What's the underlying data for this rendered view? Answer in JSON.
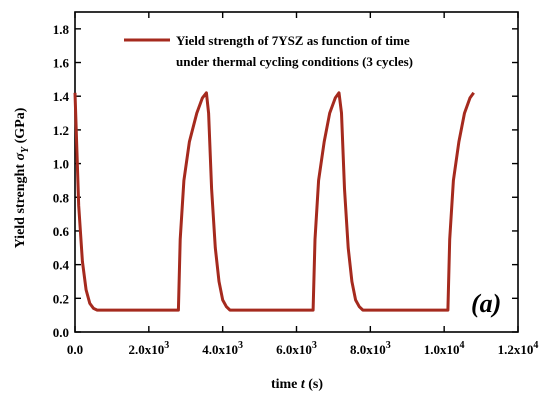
{
  "chart_data": {
    "type": "line",
    "xlabel_prefix": "time ",
    "xlabel_var": "t",
    "xlabel_unit": " (s)",
    "ylabel_prefix": "Yield strenght ",
    "ylabel_var": "σ",
    "ylabel_sub": "Y",
    "ylabel_unit": " (GPa)",
    "xlim": [
      0,
      12000
    ],
    "ylim": [
      0.0,
      1.9
    ],
    "panel_label": "(a)",
    "x_ticks": [
      {
        "value": 0,
        "mantissa": "0.0",
        "exp": ""
      },
      {
        "value": 2000,
        "mantissa": "2.0x10",
        "exp": "3"
      },
      {
        "value": 4000,
        "mantissa": "4.0x10",
        "exp": "3"
      },
      {
        "value": 6000,
        "mantissa": "6.0x10",
        "exp": "3"
      },
      {
        "value": 8000,
        "mantissa": "8.0x10",
        "exp": "3"
      },
      {
        "value": 10000,
        "mantissa": "1.0x10",
        "exp": "4"
      },
      {
        "value": 12000,
        "mantissa": "1.2x10",
        "exp": "4"
      }
    ],
    "y_ticks": [
      {
        "value": 0.0,
        "label": "0.0"
      },
      {
        "value": 0.2,
        "label": "0.2"
      },
      {
        "value": 0.4,
        "label": "0.4"
      },
      {
        "value": 0.6,
        "label": "0.6"
      },
      {
        "value": 0.8,
        "label": "0.8"
      },
      {
        "value": 1.0,
        "label": "1.0"
      },
      {
        "value": 1.2,
        "label": "1.2"
      },
      {
        "value": 1.4,
        "label": "1.4"
      },
      {
        "value": 1.6,
        "label": "1.6"
      },
      {
        "value": 1.8,
        "label": "1.8"
      }
    ],
    "legend": {
      "placement": "top-right",
      "line1": "Yield strength of 7YSZ as function of time",
      "line2": "under thermal cycling conditions (3 cycles)"
    },
    "series": [
      {
        "color": "#a52a1e",
        "points": [
          [
            0,
            1.42
          ],
          [
            100,
            0.75
          ],
          [
            200,
            0.42
          ],
          [
            300,
            0.25
          ],
          [
            400,
            0.17
          ],
          [
            500,
            0.14
          ],
          [
            600,
            0.13
          ],
          [
            2800,
            0.13
          ],
          [
            2850,
            0.55
          ],
          [
            2950,
            0.9
          ],
          [
            3100,
            1.13
          ],
          [
            3300,
            1.3
          ],
          [
            3450,
            1.39
          ],
          [
            3560,
            1.42
          ],
          [
            3620,
            1.3
          ],
          [
            3700,
            0.85
          ],
          [
            3800,
            0.5
          ],
          [
            3900,
            0.3
          ],
          [
            4000,
            0.19
          ],
          [
            4100,
            0.15
          ],
          [
            4200,
            0.13
          ],
          [
            6450,
            0.13
          ],
          [
            6500,
            0.55
          ],
          [
            6600,
            0.9
          ],
          [
            6750,
            1.13
          ],
          [
            6900,
            1.3
          ],
          [
            7050,
            1.39
          ],
          [
            7150,
            1.42
          ],
          [
            7220,
            1.3
          ],
          [
            7300,
            0.85
          ],
          [
            7400,
            0.5
          ],
          [
            7500,
            0.3
          ],
          [
            7600,
            0.19
          ],
          [
            7700,
            0.15
          ],
          [
            7800,
            0.13
          ],
          [
            10100,
            0.13
          ],
          [
            10150,
            0.55
          ],
          [
            10250,
            0.9
          ],
          [
            10400,
            1.13
          ],
          [
            10550,
            1.3
          ],
          [
            10700,
            1.39
          ],
          [
            10800,
            1.42
          ]
        ]
      }
    ]
  }
}
